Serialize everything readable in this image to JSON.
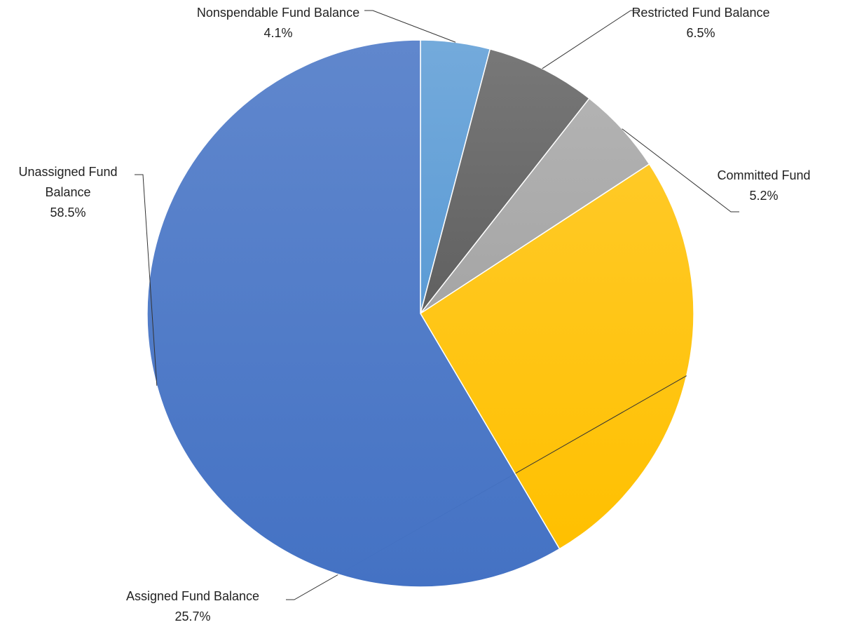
{
  "chart_data": {
    "type": "pie",
    "categories": [
      "Nonspendable Fund Balance",
      "Restricted Fund Balance",
      "Committed Fund",
      "Assigned Fund Balance",
      "Unassigned Fund Balance"
    ],
    "values": [
      4.1,
      6.5,
      5.2,
      25.7,
      58.5
    ],
    "value_labels": [
      "4.1%",
      "6.5%",
      "5.2%",
      "25.7%",
      "58.5%"
    ],
    "colors": [
      "#5b9bd5",
      "#606060",
      "#a5a5a5",
      "#ffc000",
      "#4472c4"
    ]
  }
}
